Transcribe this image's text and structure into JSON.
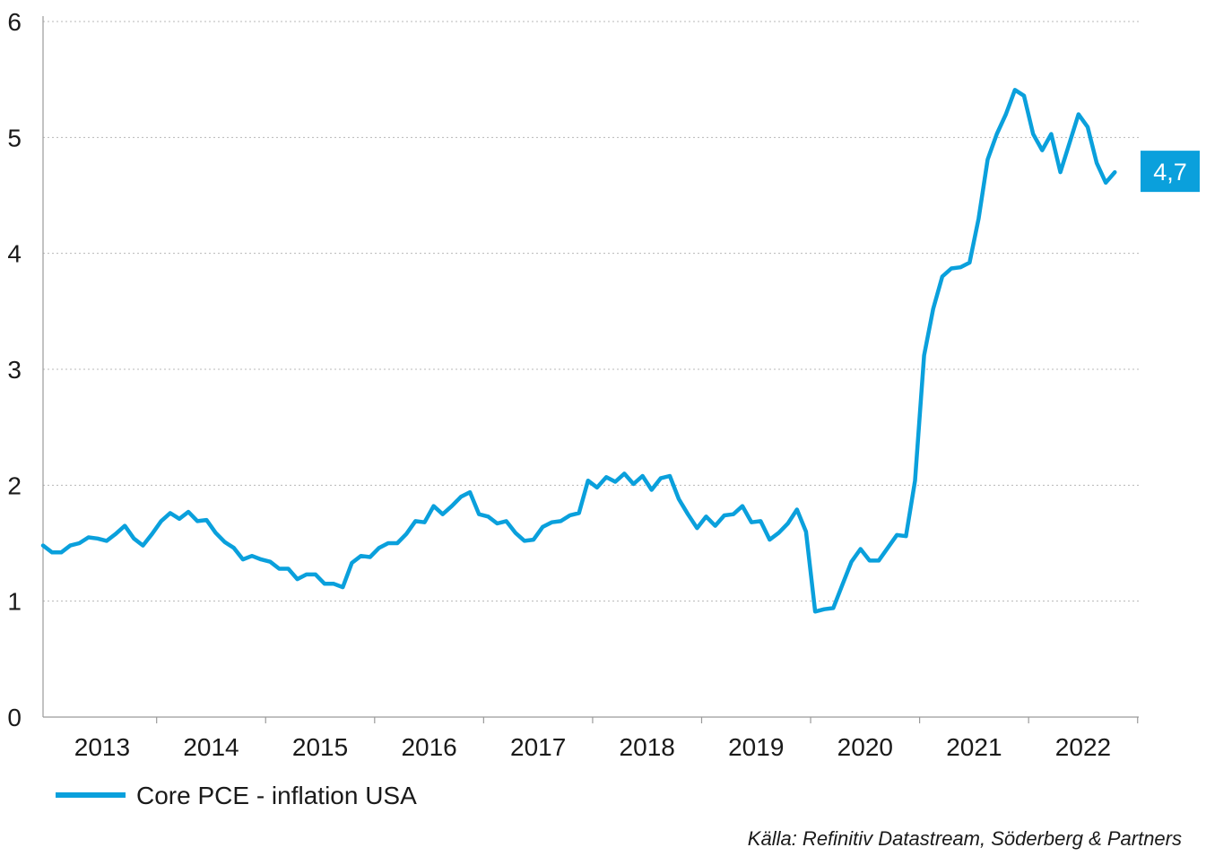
{
  "chart_data": {
    "type": "line",
    "title": "",
    "xlabel": "",
    "ylabel": "",
    "ylim": [
      0,
      6
    ],
    "yticks": [
      "0",
      "1",
      "2",
      "3",
      "4",
      "5",
      "6"
    ],
    "xticks": [
      "2013",
      "2014",
      "2015",
      "2016",
      "2017",
      "2018",
      "2019",
      "2020",
      "2021",
      "2022"
    ],
    "grid": "horizontal dotted",
    "line_color": "#0aa0dc",
    "series": [
      {
        "name": "Core PCE - inflation USA",
        "x_start": "2012-12",
        "frequency": "monthly",
        "values": [
          1.48,
          1.42,
          1.42,
          1.48,
          1.5,
          1.55,
          1.54,
          1.52,
          1.58,
          1.65,
          1.54,
          1.48,
          1.58,
          1.69,
          1.76,
          1.71,
          1.77,
          1.69,
          1.7,
          1.59,
          1.51,
          1.46,
          1.36,
          1.39,
          1.36,
          1.34,
          1.28,
          1.28,
          1.19,
          1.23,
          1.23,
          1.15,
          1.15,
          1.12,
          1.33,
          1.39,
          1.38,
          1.46,
          1.5,
          1.5,
          1.58,
          1.69,
          1.68,
          1.82,
          1.75,
          1.82,
          1.9,
          1.94,
          1.75,
          1.73,
          1.67,
          1.69,
          1.59,
          1.52,
          1.53,
          1.64,
          1.68,
          1.69,
          1.74,
          1.76,
          2.04,
          1.98,
          2.07,
          2.03,
          2.1,
          2.01,
          2.08,
          1.96,
          2.06,
          2.08,
          1.88,
          1.75,
          1.63,
          1.73,
          1.65,
          1.74,
          1.75,
          1.82,
          1.68,
          1.69,
          1.53,
          1.59,
          1.67,
          1.79,
          1.6,
          0.91,
          0.93,
          0.94,
          1.14,
          1.34,
          1.45,
          1.35,
          1.35,
          1.46,
          1.57,
          1.56,
          2.04,
          3.12,
          3.52,
          3.8,
          3.87,
          3.88,
          3.92,
          4.3,
          4.81,
          5.03,
          5.2,
          5.41,
          5.36,
          5.03,
          4.89,
          5.03,
          4.7,
          4.95,
          5.2,
          5.09,
          4.78,
          4.61,
          4.7
        ]
      }
    ],
    "last_value_label": "4,7",
    "source": "Källa: Refinitiv Datastream, Söderberg & Partners"
  }
}
